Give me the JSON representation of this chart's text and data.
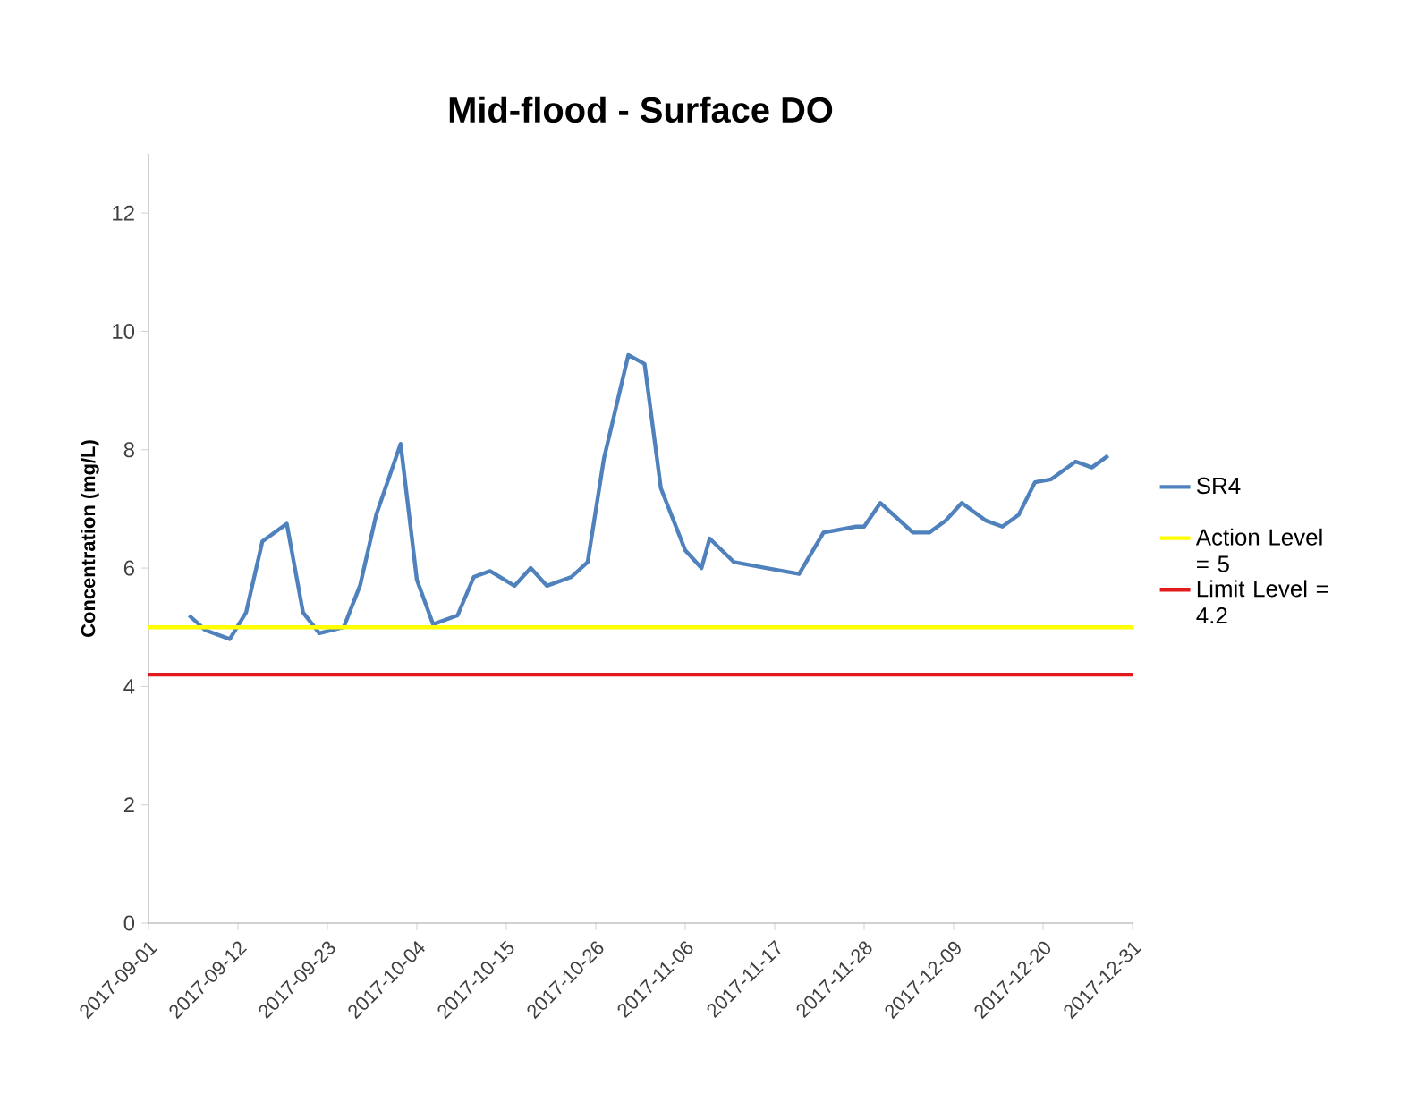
{
  "chart_data": {
    "type": "line",
    "title": "Mid-flood - Surface DO",
    "ylabel": "Concentration (mg/L)",
    "xlim": [
      "2017-09-01",
      "2017-12-31"
    ],
    "xticks": [
      "2017-09-01",
      "2017-09-12",
      "2017-09-23",
      "2017-10-04",
      "2017-10-15",
      "2017-10-26",
      "2017-11-06",
      "2017-11-17",
      "2017-11-28",
      "2017-12-09",
      "2017-12-20",
      "2017-12-31"
    ],
    "ylim": [
      0,
      13
    ],
    "yticks": [
      0,
      2,
      4,
      6,
      8,
      10,
      12
    ],
    "grid": false,
    "legend": "right",
    "marker": "none",
    "line_style": "solid",
    "series": [
      {
        "name": "SR4",
        "color": "#4f81bd",
        "x": [
          "2017-09-06",
          "2017-09-08",
          "2017-09-11",
          "2017-09-13",
          "2017-09-15",
          "2017-09-18",
          "2017-09-20",
          "2017-09-22",
          "2017-09-25",
          "2017-09-27",
          "2017-09-29",
          "2017-10-02",
          "2017-10-04",
          "2017-10-06",
          "2017-10-09",
          "2017-10-11",
          "2017-10-13",
          "2017-10-16",
          "2017-10-18",
          "2017-10-20",
          "2017-10-23",
          "2017-10-25",
          "2017-10-27",
          "2017-10-30",
          "2017-11-01",
          "2017-11-03",
          "2017-11-06",
          "2017-11-08",
          "2017-11-09",
          "2017-11-12",
          "2017-11-16",
          "2017-11-20",
          "2017-11-23",
          "2017-11-27",
          "2017-11-28",
          "2017-11-30",
          "2017-12-04",
          "2017-12-06",
          "2017-12-08",
          "2017-12-10",
          "2017-12-13",
          "2017-12-15",
          "2017-12-17",
          "2017-12-19",
          "2017-12-21",
          "2017-12-24",
          "2017-12-26",
          "2017-12-28"
        ],
        "values": [
          5.2,
          4.95,
          4.8,
          5.25,
          6.45,
          6.75,
          5.25,
          4.9,
          5.0,
          5.7,
          6.9,
          8.1,
          5.8,
          5.05,
          5.2,
          5.85,
          5.95,
          5.7,
          6.0,
          5.7,
          5.85,
          6.1,
          7.85,
          9.6,
          9.45,
          7.35,
          6.3,
          6.0,
          6.5,
          6.1,
          6.0,
          5.9,
          6.6,
          6.7,
          6.7,
          7.1,
          6.6,
          6.6,
          6.8,
          7.1,
          6.8,
          6.7,
          6.9,
          7.45,
          7.5,
          7.8,
          7.7,
          7.9
        ]
      },
      {
        "name": "Action Level = 5",
        "color": "#ffff00",
        "x": [
          "2017-09-01",
          "2017-12-31"
        ],
        "values": [
          5,
          5
        ]
      },
      {
        "name": "Limit Level = 4.2",
        "color": "#e31a1c",
        "x": [
          "2017-09-01",
          "2017-12-31"
        ],
        "values": [
          4.2,
          4.2
        ]
      }
    ]
  }
}
